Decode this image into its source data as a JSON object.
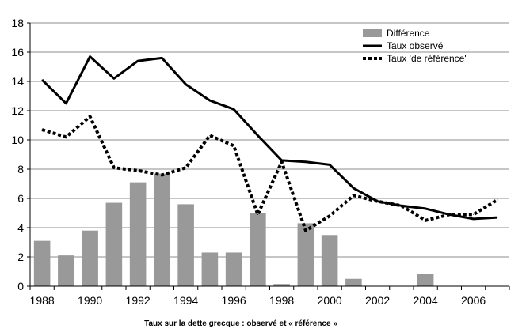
{
  "chart_data": {
    "type": "bar",
    "caption": "Taux sur la dette grecque : observé et « référence »",
    "x": [
      1988,
      1989,
      1990,
      1991,
      1992,
      1993,
      1994,
      1995,
      1996,
      1997,
      1998,
      1999,
      2000,
      2001,
      2002,
      2003,
      2004,
      2005,
      2006,
      2007
    ],
    "x_tick_labels": [
      "1988",
      "1990",
      "1992",
      "1994",
      "1996",
      "1998",
      "2000",
      "2002",
      "2004",
      "2006"
    ],
    "y_tick_labels": [
      "0",
      "2",
      "4",
      "6",
      "8",
      "10",
      "12",
      "14",
      "16",
      "18"
    ],
    "ylim": [
      0,
      18
    ],
    "grid": "horizontal",
    "legend_position": "top-right",
    "series": [
      {
        "name": "Différence",
        "type": "bar",
        "color": "#999999",
        "values": [
          3.1,
          2.1,
          3.8,
          5.7,
          7.1,
          7.7,
          5.6,
          2.3,
          2.3,
          5.0,
          0.15,
          4.3,
          3.5,
          0.5,
          0,
          0,
          0.85,
          0,
          0,
          0
        ]
      },
      {
        "name": "Taux observé",
        "type": "line",
        "style": "solid",
        "color": "#000000",
        "values": [
          14.1,
          12.5,
          15.7,
          14.2,
          15.4,
          15.6,
          13.8,
          12.7,
          12.1,
          10.3,
          8.6,
          8.5,
          8.3,
          6.7,
          5.8,
          5.5,
          5.3,
          4.9,
          4.6,
          4.7
        ]
      },
      {
        "name": "Taux 'de référence'",
        "type": "line",
        "style": "dotted",
        "color": "#000000",
        "values": [
          10.7,
          10.2,
          11.6,
          8.1,
          7.9,
          7.6,
          8.1,
          10.3,
          9.6,
          4.9,
          8.5,
          3.8,
          4.8,
          6.2,
          5.8,
          5.5,
          4.5,
          4.9,
          4.9,
          5.9
        ]
      }
    ]
  }
}
